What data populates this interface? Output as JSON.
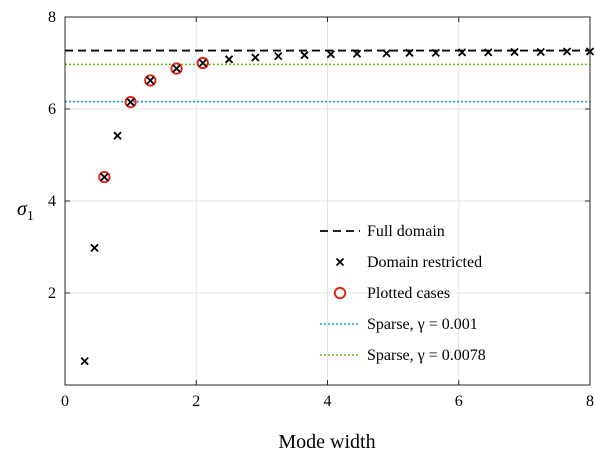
{
  "chart_data": {
    "type": "scatter",
    "title": "",
    "xlabel": "Mode width",
    "ylabel_base": "σ",
    "ylabel_sub": "1",
    "xlim": [
      0,
      8
    ],
    "ylim": [
      0,
      8
    ],
    "xticks": [
      0,
      2,
      4,
      6,
      8
    ],
    "yticks": [
      2,
      4,
      6,
      8
    ],
    "grid": true,
    "legend_position": "lower-right",
    "series": [
      {
        "name": "Full domain",
        "kind": "hline",
        "y": 7.27,
        "color": "#000000",
        "style": "dashed"
      },
      {
        "name": "Domain restricted",
        "kind": "markers",
        "marker": "x",
        "color": "#000000",
        "x": [
          0.3,
          0.45,
          0.6,
          0.8,
          1.0,
          1.3,
          1.7,
          2.1,
          2.5,
          2.9,
          3.25,
          3.65,
          4.05,
          4.45,
          4.9,
          5.25,
          5.65,
          6.05,
          6.45,
          6.85,
          7.25,
          7.65,
          8.05
        ],
        "y": [
          0.52,
          2.98,
          4.52,
          5.42,
          6.15,
          6.62,
          6.88,
          7.0,
          7.08,
          7.12,
          7.15,
          7.17,
          7.19,
          7.2,
          7.21,
          7.22,
          7.22,
          7.23,
          7.23,
          7.24,
          7.24,
          7.25,
          7.25
        ]
      },
      {
        "name": "Plotted cases",
        "kind": "markers",
        "marker": "o",
        "color": "#e8190e",
        "x": [
          0.6,
          1.0,
          1.3,
          1.7,
          2.1
        ],
        "y": [
          4.52,
          6.15,
          6.62,
          6.88,
          7.0
        ]
      },
      {
        "name": "Sparse, γ = 0.001",
        "kind": "hline",
        "y": 6.16,
        "color": "#1f9bdc",
        "style": "dotted"
      },
      {
        "name": "Sparse, γ = 0.0078",
        "kind": "hline",
        "y": 6.97,
        "color": "#66c21a",
        "style": "dotted"
      }
    ]
  }
}
